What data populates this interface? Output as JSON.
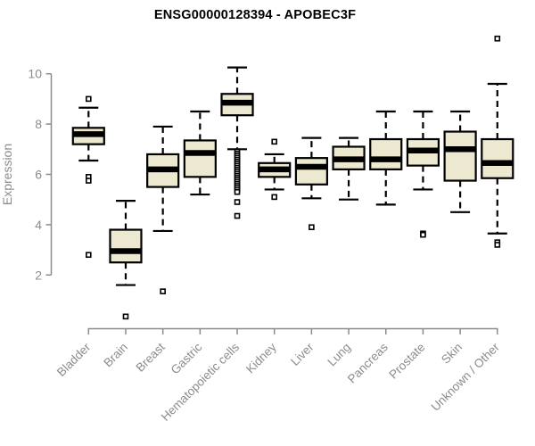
{
  "chart_data": {
    "type": "boxplot",
    "title": "ENSG00000128394 - APOBEC3F",
    "ylabel": "Expression",
    "xlabel": "",
    "yticks": [
      2,
      4,
      6,
      8,
      10
    ],
    "ylim": [
      0.3,
      11.5
    ],
    "grid": false,
    "legend": "none",
    "categories": [
      "Bladder",
      "Brain",
      "Breast",
      "Gastric",
      "Hematopoietic cells",
      "Kidney",
      "Liver",
      "Lung",
      "Pancreas",
      "Prostate",
      "Skin",
      "Unknown / Other"
    ],
    "series": [
      {
        "name": "Bladder",
        "whisker_low": 6.55,
        "q1": 7.2,
        "median": 7.6,
        "q3": 7.85,
        "whisker_high": 8.65,
        "outliers": [
          9.0,
          5.9,
          5.75,
          2.8
        ]
      },
      {
        "name": "Brain",
        "whisker_low": 1.6,
        "q1": 2.5,
        "median": 2.95,
        "q3": 3.8,
        "whisker_high": 4.95,
        "outliers": [
          0.35
        ]
      },
      {
        "name": "Breast",
        "whisker_low": 3.75,
        "q1": 5.5,
        "median": 6.2,
        "q3": 6.8,
        "whisker_high": 7.9,
        "outliers": [
          1.35
        ]
      },
      {
        "name": "Gastric",
        "whisker_low": 5.2,
        "q1": 5.9,
        "median": 6.85,
        "q3": 7.35,
        "whisker_high": 8.5,
        "outliers": []
      },
      {
        "name": "Hematopoietic cells",
        "whisker_low": 7.0,
        "q1": 8.35,
        "median": 8.85,
        "q3": 9.2,
        "whisker_high": 10.25,
        "outliers": [
          6.9,
          6.82,
          6.74,
          6.66,
          6.58,
          6.5,
          6.42,
          6.34,
          6.26,
          6.18,
          6.1,
          6.02,
          5.94,
          5.86,
          5.78,
          5.7,
          5.62,
          5.54,
          5.46,
          5.38,
          5.3,
          4.9,
          4.35
        ]
      },
      {
        "name": "Kidney",
        "whisker_low": 5.4,
        "q1": 5.9,
        "median": 6.2,
        "q3": 6.45,
        "whisker_high": 6.8,
        "outliers": [
          7.3,
          5.1
        ]
      },
      {
        "name": "Liver",
        "whisker_low": 5.05,
        "q1": 5.6,
        "median": 6.3,
        "q3": 6.65,
        "whisker_high": 7.45,
        "outliers": [
          3.9
        ]
      },
      {
        "name": "Lung",
        "whisker_low": 5.0,
        "q1": 6.2,
        "median": 6.6,
        "q3": 7.1,
        "whisker_high": 7.45,
        "outliers": []
      },
      {
        "name": "Pancreas",
        "whisker_low": 4.8,
        "q1": 6.2,
        "median": 6.6,
        "q3": 7.4,
        "whisker_high": 8.5,
        "outliers": []
      },
      {
        "name": "Prostate",
        "whisker_low": 5.4,
        "q1": 6.35,
        "median": 6.95,
        "q3": 7.4,
        "whisker_high": 8.5,
        "outliers": [
          3.65,
          3.6
        ]
      },
      {
        "name": "Skin",
        "whisker_low": 4.5,
        "q1": 5.75,
        "median": 7.0,
        "q3": 7.7,
        "whisker_high": 8.5,
        "outliers": []
      },
      {
        "name": "Unknown / Other",
        "whisker_low": 3.65,
        "q1": 5.85,
        "median": 6.45,
        "q3": 7.4,
        "whisker_high": 9.6,
        "outliers": [
          11.4,
          3.3,
          3.2
        ]
      }
    ],
    "colors": {
      "box_fill": "#ede8d0",
      "box_border": "#000000",
      "median": "#000000",
      "whisker": "#000000",
      "outlier_fill": "#ffffff",
      "axis": "#8c8c8c",
      "tick_label": "#8c8c8c",
      "title": "#000000",
      "background": "#ffffff"
    }
  }
}
